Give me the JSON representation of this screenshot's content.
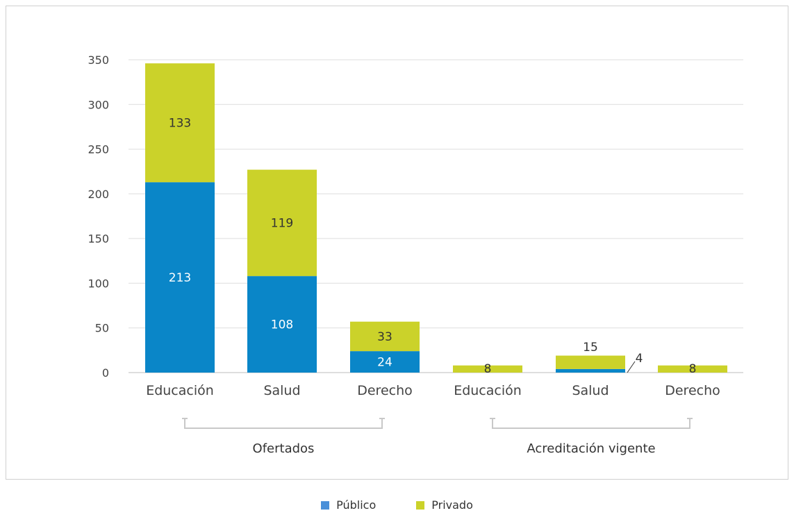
{
  "chart_data": {
    "type": "bar",
    "stacked": true,
    "ylim": [
      0,
      350
    ],
    "yticks": [
      "0",
      "50",
      "100",
      "150",
      "200",
      "250",
      "300",
      "350"
    ],
    "grid": true,
    "legend_position": "bottom-center",
    "categories": [
      "Educación",
      "Salud",
      "Derecho",
      "Educación",
      "Salud",
      "Derecho"
    ],
    "groups": [
      {
        "label": "Ofertados",
        "categories": [
          0,
          1,
          2
        ]
      },
      {
        "label": "Acreditación vigente",
        "categories": [
          3,
          4,
          5
        ]
      }
    ],
    "series": [
      {
        "name": "Público",
        "color": "#0a86c8",
        "values": [
          213,
          108,
          24,
          0,
          4,
          0
        ],
        "labels": [
          "213",
          "108",
          "24",
          "",
          "4",
          ""
        ]
      },
      {
        "name": "Privado",
        "color": "#cbd22a",
        "values": [
          133,
          119,
          33,
          8,
          15,
          8
        ],
        "labels": [
          "133",
          "119",
          "33",
          "8",
          "15",
          "8"
        ]
      }
    ]
  }
}
